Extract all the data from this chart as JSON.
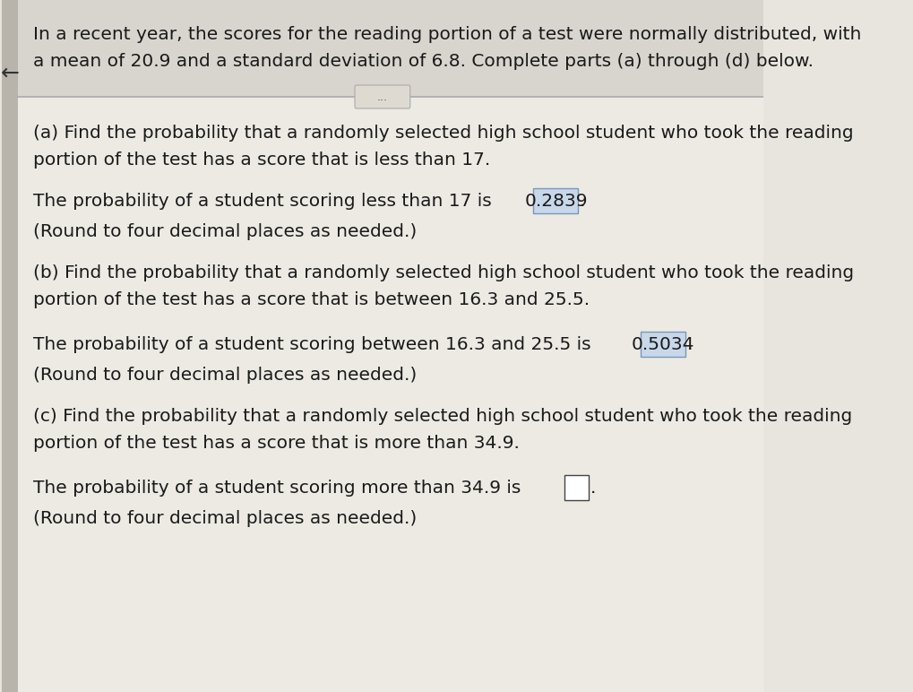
{
  "background_color": "#e8e5de",
  "panel_color": "#eceae3",
  "title_text_line1": "In a recent year, the scores for the reading portion of a test were normally distributed, with",
  "title_text_line2": "a mean of 20.9 and a standard deviation of 6.8. Complete parts (a) through (d) below.",
  "ellipsis_text": "...",
  "part_a_question_line1": "(a) Find the probability that a randomly selected high school student who took the reading",
  "part_a_question_line2": "portion of the test has a score that is less than 17.",
  "part_a_answer_prefix": "The probability of a student scoring less than 17 is ",
  "part_a_answer_value": "0.2839",
  "part_a_answer_suffix": ".",
  "part_a_round": "(Round to four decimal places as needed.)",
  "part_b_question_line1": "(b) Find the probability that a randomly selected high school student who took the reading",
  "part_b_question_line2": "portion of the test has a score that is between 16.3 and 25.5.",
  "part_b_answer_prefix": "The probability of a student scoring between 16.3 and 25.5 is ",
  "part_b_answer_value": "0.5034",
  "part_b_answer_suffix": ".",
  "part_b_round": "(Round to four decimal places as needed.)",
  "part_c_question_line1": "(c) Find the probability that a randomly selected high school student who took the reading",
  "part_c_question_line2": "portion of the test has a score that is more than 34.9.",
  "part_c_answer_prefix": "The probability of a student scoring more than 34.9 is ",
  "part_c_answer_value": "",
  "part_c_answer_suffix": ".",
  "part_c_round": "(Round to four decimal places as needed.)",
  "text_color": "#1a1a1a",
  "box_fill": "#c8d8ea",
  "box_edge": "#7799bb",
  "empty_box_fill": "#ffffff",
  "empty_box_edge": "#444444",
  "font_size": 14.5,
  "separator_color": "#aaaaaa",
  "blue_top_color": "#3a7ab8",
  "left_strip_color": "#b8b4ac",
  "left_arrow_color": "#333333",
  "title_bg_color": "#d8d5ce",
  "ellipsis_box_color": "#dedad2",
  "ellipsis_box_edge": "#aaaaaa"
}
